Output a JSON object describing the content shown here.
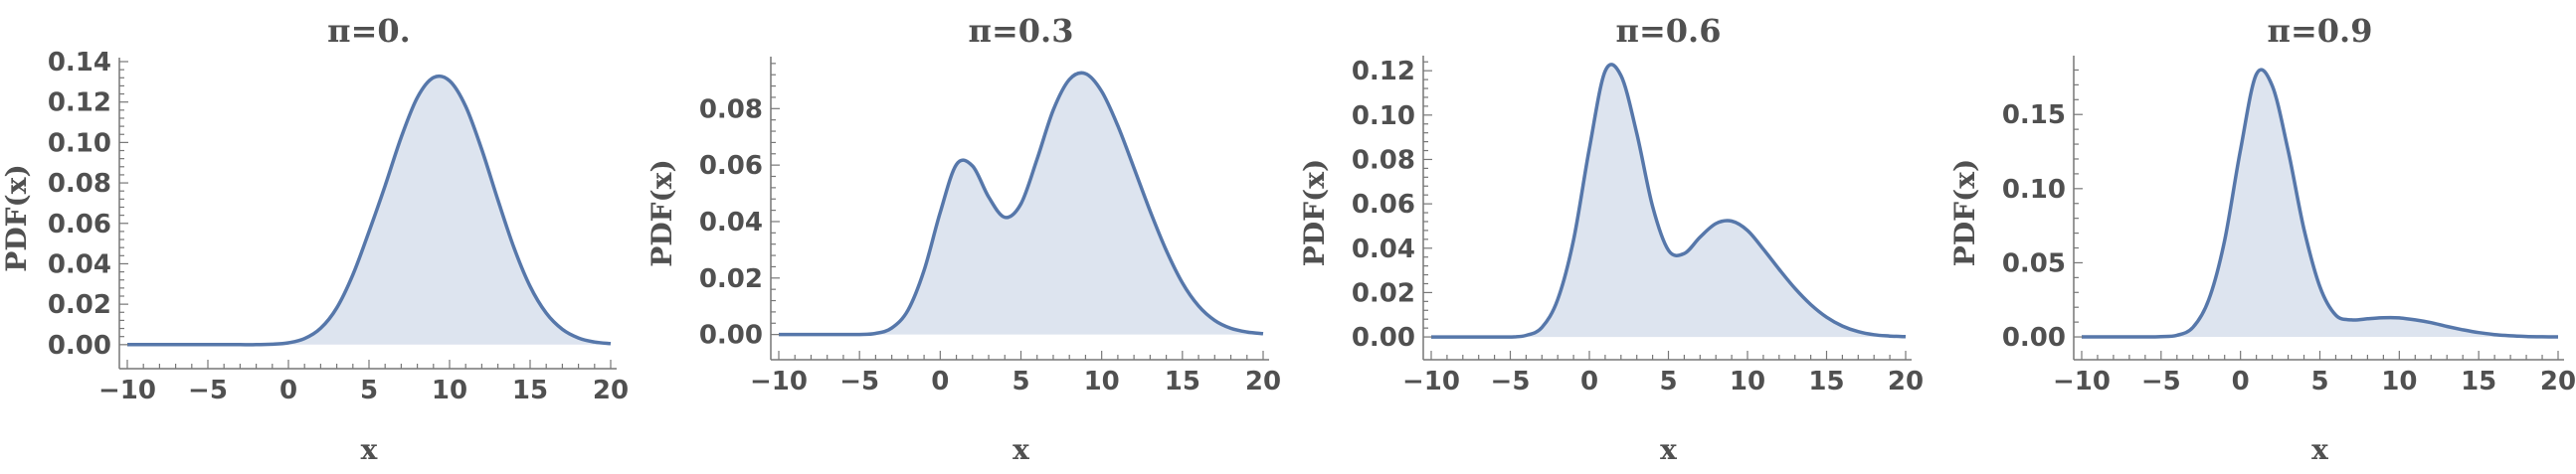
{
  "chart_data": [
    {
      "type": "area",
      "title": "π=0.",
      "xlabel": "x",
      "ylabel": "PDF(x)",
      "xlim": [
        -10,
        20
      ],
      "ylim": [
        -0.005,
        0.14
      ],
      "x_ticks": [
        "−10",
        "−5",
        "0",
        "5",
        "10",
        "15",
        "20"
      ],
      "y_ticks": [
        "0.00",
        "0.02",
        "0.04",
        "0.06",
        "0.08",
        "0.10",
        "0.12",
        "0.14"
      ],
      "series": [
        {
          "x": [
            -10,
            -9,
            -8,
            -7,
            -6,
            -5,
            -4,
            -3,
            -2,
            -1,
            0,
            1,
            2,
            3,
            4,
            5,
            6,
            7,
            8,
            9,
            10,
            11,
            12,
            13,
            14,
            15,
            16,
            17,
            18,
            19,
            20
          ],
          "values": [
            0,
            0,
            0,
            0,
            0,
            0,
            0,
            0,
            0,
            0.0002,
            0.0009,
            0.003,
            0.0081,
            0.0182,
            0.0346,
            0.0559,
            0.0786,
            0.1026,
            0.1222,
            0.1321,
            0.1305,
            0.1179,
            0.0965,
            0.0716,
            0.0479,
            0.0288,
            0.0156,
            0.0076,
            0.0033,
            0.0013,
            0.0005
          ]
        }
      ],
      "colors": {
        "line": "#5677aa",
        "fill": "#dde4ef"
      }
    },
    {
      "type": "area",
      "title": "π=0.3",
      "xlabel": "x",
      "ylabel": "PDF(x)",
      "xlim": [
        -10,
        20
      ],
      "ylim": [
        -0.004,
        0.097
      ],
      "x_ticks": [
        "−10",
        "−5",
        "0",
        "5",
        "10",
        "15",
        "20"
      ],
      "y_ticks": [
        "0.00",
        "0.02",
        "0.04",
        "0.06",
        "0.08"
      ],
      "series": [
        {
          "x": [
            -10,
            -9,
            -8,
            -7,
            -6,
            -5,
            -4,
            -3,
            -2,
            -1,
            0,
            1,
            2,
            3,
            4,
            5,
            6,
            7,
            8,
            9,
            10,
            11,
            12,
            13,
            14,
            15,
            16,
            17,
            18,
            19,
            20
          ],
          "values": [
            0,
            0,
            0,
            0,
            0,
            0,
            0.0004,
            0.0023,
            0.0086,
            0.0227,
            0.0432,
            0.0602,
            0.0597,
            0.0487,
            0.0415,
            0.0463,
            0.0621,
            0.0795,
            0.0903,
            0.0924,
            0.0861,
            0.0739,
            0.059,
            0.0437,
            0.0298,
            0.0183,
            0.0101,
            0.005,
            0.0022,
            0.0009,
            0.0003
          ]
        }
      ],
      "colors": {
        "line": "#5677aa",
        "fill": "#dde4ef"
      }
    },
    {
      "type": "area",
      "title": "π=0.6",
      "xlabel": "x",
      "ylabel": "PDF(x)",
      "xlim": [
        -10,
        20
      ],
      "ylim": [
        -0.004,
        0.125
      ],
      "x_ticks": [
        "−10",
        "−5",
        "0",
        "5",
        "10",
        "15",
        "20"
      ],
      "y_ticks": [
        "0.00",
        "0.02",
        "0.04",
        "0.06",
        "0.08",
        "0.10",
        "0.12"
      ],
      "series": [
        {
          "x": [
            -10,
            -9,
            -8,
            -7,
            -6,
            -5,
            -4,
            -3,
            -2,
            -1,
            0,
            1,
            2,
            3,
            4,
            5,
            6,
            7,
            8,
            9,
            10,
            11,
            12,
            13,
            14,
            15,
            16,
            17,
            18,
            19,
            20
          ],
          "values": [
            0,
            0,
            0,
            0,
            0,
            0,
            0.0007,
            0.0043,
            0.0169,
            0.0437,
            0.0849,
            0.1198,
            0.1178,
            0.0917,
            0.0588,
            0.0391,
            0.0376,
            0.045,
            0.0511,
            0.0522,
            0.048,
            0.0396,
            0.0305,
            0.0219,
            0.0146,
            0.0089,
            0.0049,
            0.0024,
            0.001,
            0.0004,
            0.0001
          ]
        }
      ],
      "colors": {
        "line": "#5677aa",
        "fill": "#dde4ef"
      }
    },
    {
      "type": "area",
      "title": "π=0.9",
      "xlabel": "x",
      "ylabel": "PDF(x)",
      "xlim": [
        -10,
        20
      ],
      "ylim": [
        -0.006,
        0.187
      ],
      "x_ticks": [
        "−10",
        "−5",
        "0",
        "5",
        "10",
        "15",
        "20"
      ],
      "y_ticks": [
        "0.00",
        "0.05",
        "0.10",
        "0.15"
      ],
      "series": [
        {
          "x": [
            -10,
            -9,
            -8,
            -7,
            -6,
            -5,
            -4,
            -3,
            -2,
            -1,
            0,
            1,
            2,
            3,
            4,
            5,
            6,
            7,
            8,
            9,
            10,
            11,
            12,
            13,
            14,
            15,
            16,
            17,
            18,
            19,
            20
          ],
          "values": [
            0,
            0,
            0,
            0,
            0,
            0.0002,
            0.0011,
            0.0064,
            0.025,
            0.065,
            0.1262,
            0.1771,
            0.1694,
            0.1257,
            0.0726,
            0.0339,
            0.0147,
            0.0115,
            0.0122,
            0.0129,
            0.0128,
            0.0115,
            0.0096,
            0.0071,
            0.0048,
            0.0029,
            0.0016,
            0.0008,
            0.0003,
            0.0001,
            0
          ]
        }
      ],
      "colors": {
        "line": "#5677aa",
        "fill": "#dde4ef"
      }
    }
  ]
}
